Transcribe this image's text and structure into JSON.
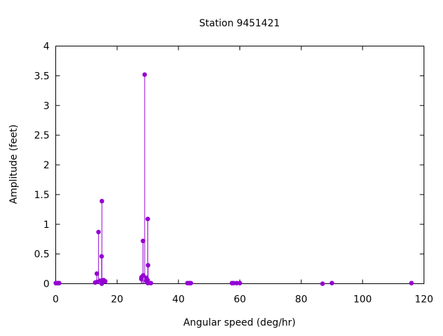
{
  "chart_data": {
    "type": "scatter",
    "style": "impulses with points",
    "title": "Station 9451421",
    "xlabel": "Angular speed (deg/hr)",
    "ylabel": "Amplitude (feet)",
    "xlim": [
      0,
      120
    ],
    "ylim": [
      0,
      4
    ],
    "xticks": [
      0,
      20,
      40,
      60,
      80,
      100,
      120
    ],
    "yticks": [
      0,
      0.5,
      1,
      1.5,
      2,
      2.5,
      3,
      3.5,
      4
    ],
    "grid": false,
    "color": "#9400d3",
    "points": [
      {
        "x": 0.041,
        "y": 0.01
      },
      {
        "x": 0.082,
        "y": 0.01
      },
      {
        "x": 0.544,
        "y": 0.01
      },
      {
        "x": 1.016,
        "y": 0.01
      },
      {
        "x": 1.098,
        "y": 0.01
      },
      {
        "x": 12.854,
        "y": 0.02
      },
      {
        "x": 13.399,
        "y": 0.17
      },
      {
        "x": 13.471,
        "y": 0.03
      },
      {
        "x": 13.943,
        "y": 0.87
      },
      {
        "x": 14.497,
        "y": 0.05
      },
      {
        "x": 14.959,
        "y": 0.46
      },
      {
        "x": 15.0,
        "y": 0.0
      },
      {
        "x": 15.041,
        "y": 1.39
      },
      {
        "x": 15.585,
        "y": 0.06
      },
      {
        "x": 16.139,
        "y": 0.04
      },
      {
        "x": 27.895,
        "y": 0.08
      },
      {
        "x": 27.968,
        "y": 0.11
      },
      {
        "x": 28.44,
        "y": 0.72
      },
      {
        "x": 28.513,
        "y": 0.14
      },
      {
        "x": 28.984,
        "y": 3.52
      },
      {
        "x": 29.456,
        "y": 0.05
      },
      {
        "x": 29.528,
        "y": 0.1
      },
      {
        "x": 29.959,
        "y": 0.06
      },
      {
        "x": 30.0,
        "y": 1.09
      },
      {
        "x": 30.041,
        "y": 0.01
      },
      {
        "x": 30.082,
        "y": 0.31
      },
      {
        "x": 31.016,
        "y": 0.01
      },
      {
        "x": 42.927,
        "y": 0.01
      },
      {
        "x": 43.476,
        "y": 0.01
      },
      {
        "x": 44.025,
        "y": 0.01
      },
      {
        "x": 57.424,
        "y": 0.01
      },
      {
        "x": 57.968,
        "y": 0.01
      },
      {
        "x": 58.984,
        "y": 0.01
      },
      {
        "x": 60.0,
        "y": 0.01
      },
      {
        "x": 86.952,
        "y": 0.0
      },
      {
        "x": 90.0,
        "y": 0.01
      },
      {
        "x": 115.936,
        "y": 0.01
      }
    ]
  }
}
